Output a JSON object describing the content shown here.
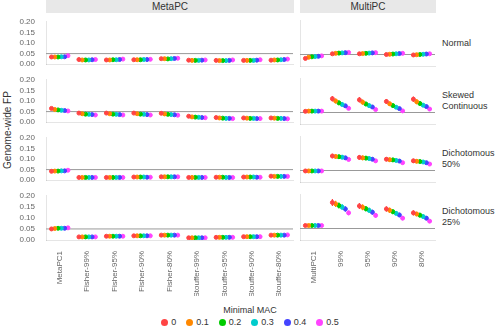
{
  "chart_data": {
    "type": "dot",
    "ylabel": "Genome-wide FP",
    "ylim": [
      0.0,
      0.2
    ],
    "yticks": [
      {
        "value": 0.0,
        "label": "0.00"
      },
      0.05,
      {
        "value": 0.1,
        "label": "0.10"
      },
      0.15,
      {
        "value": 0.2,
        "label": "0.20"
      }
    ],
    "hline": 0.05,
    "grid": false,
    "legend": "bottom",
    "legend_title": "Minimal MAC",
    "series": [
      {
        "name": "0",
        "color": "#FF4444"
      },
      {
        "name": "0.1",
        "color": "#FF8800"
      },
      {
        "name": "0.2",
        "color": "#00CC00"
      },
      {
        "name": "0.3",
        "color": "#00CCCC"
      },
      {
        "name": "0.4",
        "color": "#4444FF"
      },
      {
        "name": "0.5",
        "color": "#FF44FF"
      }
    ],
    "columns": [
      {
        "title": "MetaPC",
        "categories": [
          "MetaPC1",
          "Fisher-99%",
          "Fisher-95%",
          "Fisher-90%",
          "Fisher-80%",
          "Stouffer-99%",
          "Stouffer-95%",
          "Stouffer-90%",
          "Stouffer-80%"
        ]
      },
      {
        "title": "MultiPC",
        "categories": [
          "MultiPC1",
          "99%",
          "95%",
          "90%",
          "80%"
        ]
      }
    ],
    "rows": [
      "Normal",
      "Skewed Continuous",
      "Dichotomous 50%",
      "Dichotomous 25%"
    ],
    "panels": [
      [
        {
          "tick_labels": "y",
          "values": [
            [
              0.034,
              0.022,
              0.02,
              0.021,
              0.026,
              0.019,
              0.018,
              0.018,
              0.019
            ],
            [
              0.034,
              0.02,
              0.02,
              0.021,
              0.026,
              0.018,
              0.017,
              0.018,
              0.02
            ],
            [
              0.034,
              0.02,
              0.021,
              0.021,
              0.025,
              0.018,
              0.017,
              0.018,
              0.02
            ],
            [
              0.035,
              0.02,
              0.021,
              0.022,
              0.026,
              0.018,
              0.017,
              0.018,
              0.021
            ],
            [
              0.035,
              0.021,
              0.022,
              0.022,
              0.027,
              0.019,
              0.018,
              0.019,
              0.022
            ],
            [
              0.04,
              0.022,
              0.024,
              0.023,
              0.028,
              0.02,
              0.02,
              0.021,
              0.024
            ]
          ],
          "errors": [
            [
              0.004,
              0.003,
              0.003,
              0.003,
              0.003,
              0.003,
              0.003,
              0.003,
              0.003
            ],
            [
              0.004,
              0.003,
              0.003,
              0.003,
              0.003,
              0.003,
              0.003,
              0.003,
              0.003
            ],
            [
              0.004,
              0.003,
              0.003,
              0.003,
              0.003,
              0.003,
              0.003,
              0.003,
              0.003
            ],
            [
              0.004,
              0.003,
              0.003,
              0.003,
              0.003,
              0.003,
              0.003,
              0.003,
              0.003
            ],
            [
              0.004,
              0.003,
              0.003,
              0.003,
              0.003,
              0.003,
              0.003,
              0.003,
              0.003
            ],
            [
              0.004,
              0.003,
              0.003,
              0.003,
              0.003,
              0.003,
              0.003,
              0.003,
              0.003
            ]
          ]
        },
        {
          "tick_labels": false,
          "values": [
            [
              0.033,
              0.053,
              0.053,
              0.05,
              0.048
            ],
            [
              0.038,
              0.055,
              0.054,
              0.051,
              0.049
            ],
            [
              0.04,
              0.056,
              0.055,
              0.052,
              0.05
            ],
            [
              0.041,
              0.057,
              0.056,
              0.053,
              0.051
            ],
            [
              0.042,
              0.058,
              0.057,
              0.054,
              0.052
            ],
            [
              0.044,
              0.059,
              0.058,
              0.055,
              0.053
            ]
          ],
          "errors": [
            [
              0.004,
              0.004,
              0.004,
              0.004,
              0.004
            ],
            [
              0.004,
              0.004,
              0.004,
              0.004,
              0.004
            ],
            [
              0.004,
              0.004,
              0.004,
              0.004,
              0.004
            ],
            [
              0.004,
              0.004,
              0.004,
              0.004,
              0.004
            ],
            [
              0.004,
              0.004,
              0.004,
              0.004,
              0.004
            ],
            [
              0.004,
              0.004,
              0.004,
              0.004,
              0.004
            ]
          ]
        }
      ],
      [
        {
          "tick_labels": "y",
          "values": [
            [
              0.065,
              0.043,
              0.043,
              0.043,
              0.042,
              0.028,
              0.022,
              0.02,
              0.02
            ],
            [
              0.06,
              0.04,
              0.04,
              0.04,
              0.039,
              0.025,
              0.02,
              0.019,
              0.019
            ],
            [
              0.058,
              0.038,
              0.038,
              0.038,
              0.037,
              0.024,
              0.019,
              0.018,
              0.018
            ],
            [
              0.056,
              0.037,
              0.037,
              0.037,
              0.036,
              0.023,
              0.018,
              0.018,
              0.018
            ],
            [
              0.055,
              0.036,
              0.036,
              0.036,
              0.035,
              0.022,
              0.018,
              0.017,
              0.017
            ],
            [
              0.053,
              0.034,
              0.034,
              0.034,
              0.033,
              0.021,
              0.017,
              0.017,
              0.016
            ]
          ],
          "errors": [
            [
              0.005,
              0.004,
              0.004,
              0.004,
              0.004,
              0.003,
              0.003,
              0.003,
              0.003
            ],
            [
              0.005,
              0.004,
              0.004,
              0.004,
              0.004,
              0.003,
              0.003,
              0.003,
              0.003
            ],
            [
              0.005,
              0.004,
              0.004,
              0.004,
              0.004,
              0.003,
              0.003,
              0.003,
              0.003
            ],
            [
              0.005,
              0.004,
              0.004,
              0.004,
              0.004,
              0.003,
              0.003,
              0.003,
              0.003
            ],
            [
              0.005,
              0.004,
              0.004,
              0.004,
              0.004,
              0.003,
              0.003,
              0.003,
              0.003
            ],
            [
              0.005,
              0.004,
              0.004,
              0.004,
              0.004,
              0.003,
              0.003,
              0.003,
              0.003
            ]
          ]
        },
        {
          "tick_labels": false,
          "values": [
            [
              0.055,
              0.11,
              0.105,
              0.098,
              0.108
            ],
            [
              0.056,
              0.1,
              0.095,
              0.088,
              0.097
            ],
            [
              0.056,
              0.092,
              0.087,
              0.08,
              0.089
            ],
            [
              0.056,
              0.085,
              0.08,
              0.073,
              0.082
            ],
            [
              0.056,
              0.079,
              0.074,
              0.067,
              0.076
            ],
            [
              0.056,
              0.068,
              0.063,
              0.057,
              0.065
            ]
          ],
          "errors": [
            [
              0.006,
              0.012,
              0.012,
              0.011,
              0.012
            ],
            [
              0.006,
              0.011,
              0.011,
              0.01,
              0.011
            ],
            [
              0.006,
              0.01,
              0.01,
              0.009,
              0.01
            ],
            [
              0.006,
              0.009,
              0.009,
              0.008,
              0.009
            ],
            [
              0.006,
              0.008,
              0.008,
              0.007,
              0.008
            ],
            [
              0.006,
              0.007,
              0.007,
              0.007,
              0.007
            ]
          ]
        }
      ],
      [
        {
          "tick_labels": "y",
          "values": [
            [
              0.042,
              0.013,
              0.013,
              0.015,
              0.016,
              0.013,
              0.014,
              0.015,
              0.019
            ],
            [
              0.043,
              0.013,
              0.013,
              0.015,
              0.016,
              0.013,
              0.014,
              0.015,
              0.018
            ],
            [
              0.043,
              0.013,
              0.013,
              0.015,
              0.016,
              0.013,
              0.014,
              0.015,
              0.018
            ],
            [
              0.044,
              0.013,
              0.013,
              0.015,
              0.016,
              0.013,
              0.013,
              0.015,
              0.018
            ],
            [
              0.044,
              0.013,
              0.013,
              0.014,
              0.016,
              0.013,
              0.013,
              0.014,
              0.018
            ],
            [
              0.047,
              0.013,
              0.013,
              0.014,
              0.016,
              0.013,
              0.013,
              0.014,
              0.018
            ]
          ],
          "errors": [
            [
              0.004,
              0.002,
              0.002,
              0.002,
              0.003,
              0.002,
              0.002,
              0.002,
              0.003
            ],
            [
              0.004,
              0.002,
              0.002,
              0.002,
              0.003,
              0.002,
              0.002,
              0.002,
              0.003
            ],
            [
              0.004,
              0.002,
              0.002,
              0.002,
              0.003,
              0.002,
              0.002,
              0.002,
              0.003
            ],
            [
              0.004,
              0.002,
              0.002,
              0.002,
              0.003,
              0.002,
              0.002,
              0.002,
              0.003
            ],
            [
              0.004,
              0.002,
              0.002,
              0.002,
              0.003,
              0.002,
              0.002,
              0.002,
              0.003
            ],
            [
              0.004,
              0.002,
              0.002,
              0.002,
              0.003,
              0.002,
              0.002,
              0.002,
              0.003
            ]
          ]
        },
        {
          "tick_labels": false,
          "values": [
            [
              0.048,
              0.113,
              0.107,
              0.099,
              0.092
            ],
            [
              0.048,
              0.111,
              0.105,
              0.097,
              0.09
            ],
            [
              0.048,
              0.11,
              0.104,
              0.096,
              0.089
            ],
            [
              0.048,
              0.108,
              0.102,
              0.094,
              0.087
            ],
            [
              0.048,
              0.105,
              0.099,
              0.091,
              0.084
            ],
            [
              0.048,
              0.098,
              0.092,
              0.084,
              0.078
            ]
          ],
          "errors": [
            [
              0.005,
              0.01,
              0.01,
              0.009,
              0.009
            ],
            [
              0.005,
              0.01,
              0.01,
              0.009,
              0.009
            ],
            [
              0.005,
              0.009,
              0.009,
              0.009,
              0.008
            ],
            [
              0.005,
              0.009,
              0.009,
              0.008,
              0.008
            ],
            [
              0.005,
              0.008,
              0.008,
              0.008,
              0.007
            ],
            [
              0.005,
              0.007,
              0.007,
              0.007,
              0.006
            ]
          ]
        }
      ],
      [
        {
          "tick_labels": true,
          "values": [
            [
              0.05,
              0.014,
              0.017,
              0.019,
              0.022,
              0.01,
              0.012,
              0.015,
              0.022
            ],
            [
              0.052,
              0.014,
              0.017,
              0.019,
              0.022,
              0.01,
              0.012,
              0.015,
              0.022
            ],
            [
              0.053,
              0.014,
              0.017,
              0.019,
              0.022,
              0.01,
              0.012,
              0.015,
              0.022
            ],
            [
              0.053,
              0.014,
              0.017,
              0.019,
              0.022,
              0.01,
              0.012,
              0.015,
              0.022
            ],
            [
              0.053,
              0.014,
              0.017,
              0.019,
              0.022,
              0.01,
              0.012,
              0.015,
              0.022
            ],
            [
              0.055,
              0.014,
              0.017,
              0.019,
              0.022,
              0.01,
              0.012,
              0.015,
              0.023
            ]
          ],
          "errors": [
            [
              0.005,
              0.002,
              0.003,
              0.003,
              0.003,
              0.002,
              0.002,
              0.003,
              0.004
            ],
            [
              0.005,
              0.002,
              0.003,
              0.003,
              0.003,
              0.002,
              0.002,
              0.003,
              0.004
            ],
            [
              0.005,
              0.002,
              0.003,
              0.003,
              0.003,
              0.002,
              0.002,
              0.003,
              0.004
            ],
            [
              0.005,
              0.002,
              0.003,
              0.003,
              0.003,
              0.002,
              0.002,
              0.003,
              0.004
            ],
            [
              0.005,
              0.002,
              0.003,
              0.003,
              0.003,
              0.002,
              0.002,
              0.003,
              0.004
            ],
            [
              0.005,
              0.002,
              0.003,
              0.003,
              0.003,
              0.002,
              0.002,
              0.003,
              0.004
            ]
          ]
        },
        {
          "tick_labels": "x",
          "values": [
            [
              0.063,
              0.163,
              0.148,
              0.135,
              0.118
            ],
            [
              0.063,
              0.157,
              0.142,
              0.129,
              0.113
            ],
            [
              0.063,
              0.15,
              0.136,
              0.123,
              0.108
            ],
            [
              0.063,
              0.143,
              0.129,
              0.116,
              0.102
            ],
            [
              0.063,
              0.135,
              0.121,
              0.109,
              0.095
            ],
            [
              0.063,
              0.118,
              0.107,
              0.095,
              0.082
            ]
          ],
          "errors": [
            [
              0.006,
              0.015,
              0.013,
              0.012,
              0.011
            ],
            [
              0.006,
              0.014,
              0.013,
              0.012,
              0.01
            ],
            [
              0.006,
              0.013,
              0.012,
              0.011,
              0.01
            ],
            [
              0.006,
              0.013,
              0.012,
              0.01,
              0.009
            ],
            [
              0.006,
              0.012,
              0.011,
              0.01,
              0.009
            ],
            [
              0.006,
              0.01,
              0.01,
              0.009,
              0.007
            ]
          ]
        }
      ]
    ]
  }
}
